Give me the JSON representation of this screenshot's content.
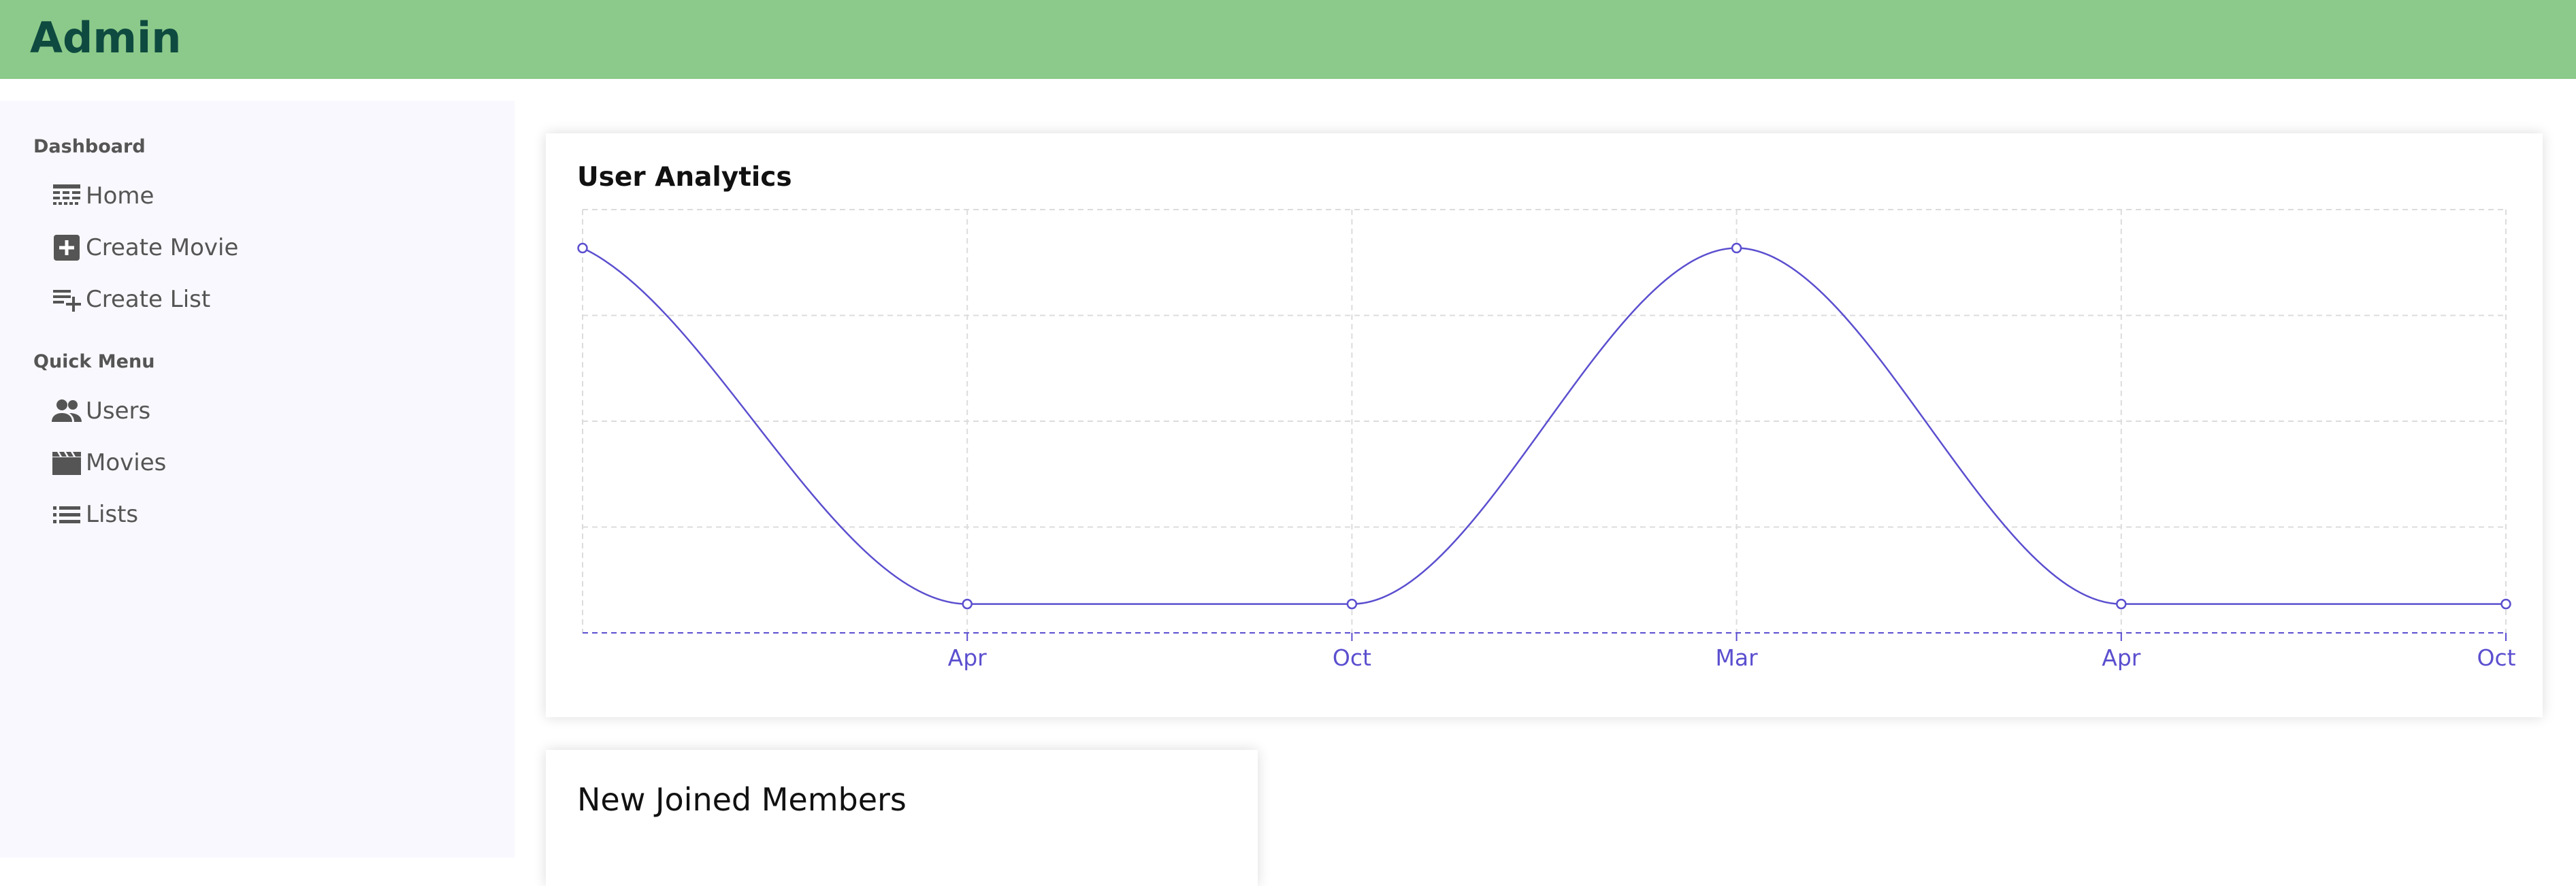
{
  "app": {
    "title": "Admin"
  },
  "sidebar": {
    "sections": [
      {
        "title": "Dashboard",
        "items": [
          {
            "label": "Home",
            "icon": "table-icon"
          },
          {
            "label": "Create Movie",
            "icon": "add-box-icon"
          },
          {
            "label": "Create List",
            "icon": "playlist-add-icon"
          }
        ]
      },
      {
        "title": "Quick Menu",
        "items": [
          {
            "label": "Users",
            "icon": "people-icon"
          },
          {
            "label": "Movies",
            "icon": "movie-icon"
          },
          {
            "label": "Lists",
            "icon": "list-icon"
          }
        ]
      }
    ]
  },
  "analytics": {
    "title": "User Analytics"
  },
  "members": {
    "title": "New Joined Members"
  },
  "colors": {
    "header": "#8bca8a",
    "line": "#5b4fcf",
    "sidebar": "#f8f8fe"
  },
  "chart_data": {
    "type": "line",
    "categories": [
      "",
      "Apr",
      "Oct",
      "Mar",
      "Apr",
      "Oct"
    ],
    "values": [
      4,
      0.3,
      0.3,
      4,
      0.3,
      0.3
    ],
    "ylim": [
      0,
      4.4
    ],
    "grid": true,
    "title": "",
    "xlabel": "",
    "ylabel": ""
  }
}
